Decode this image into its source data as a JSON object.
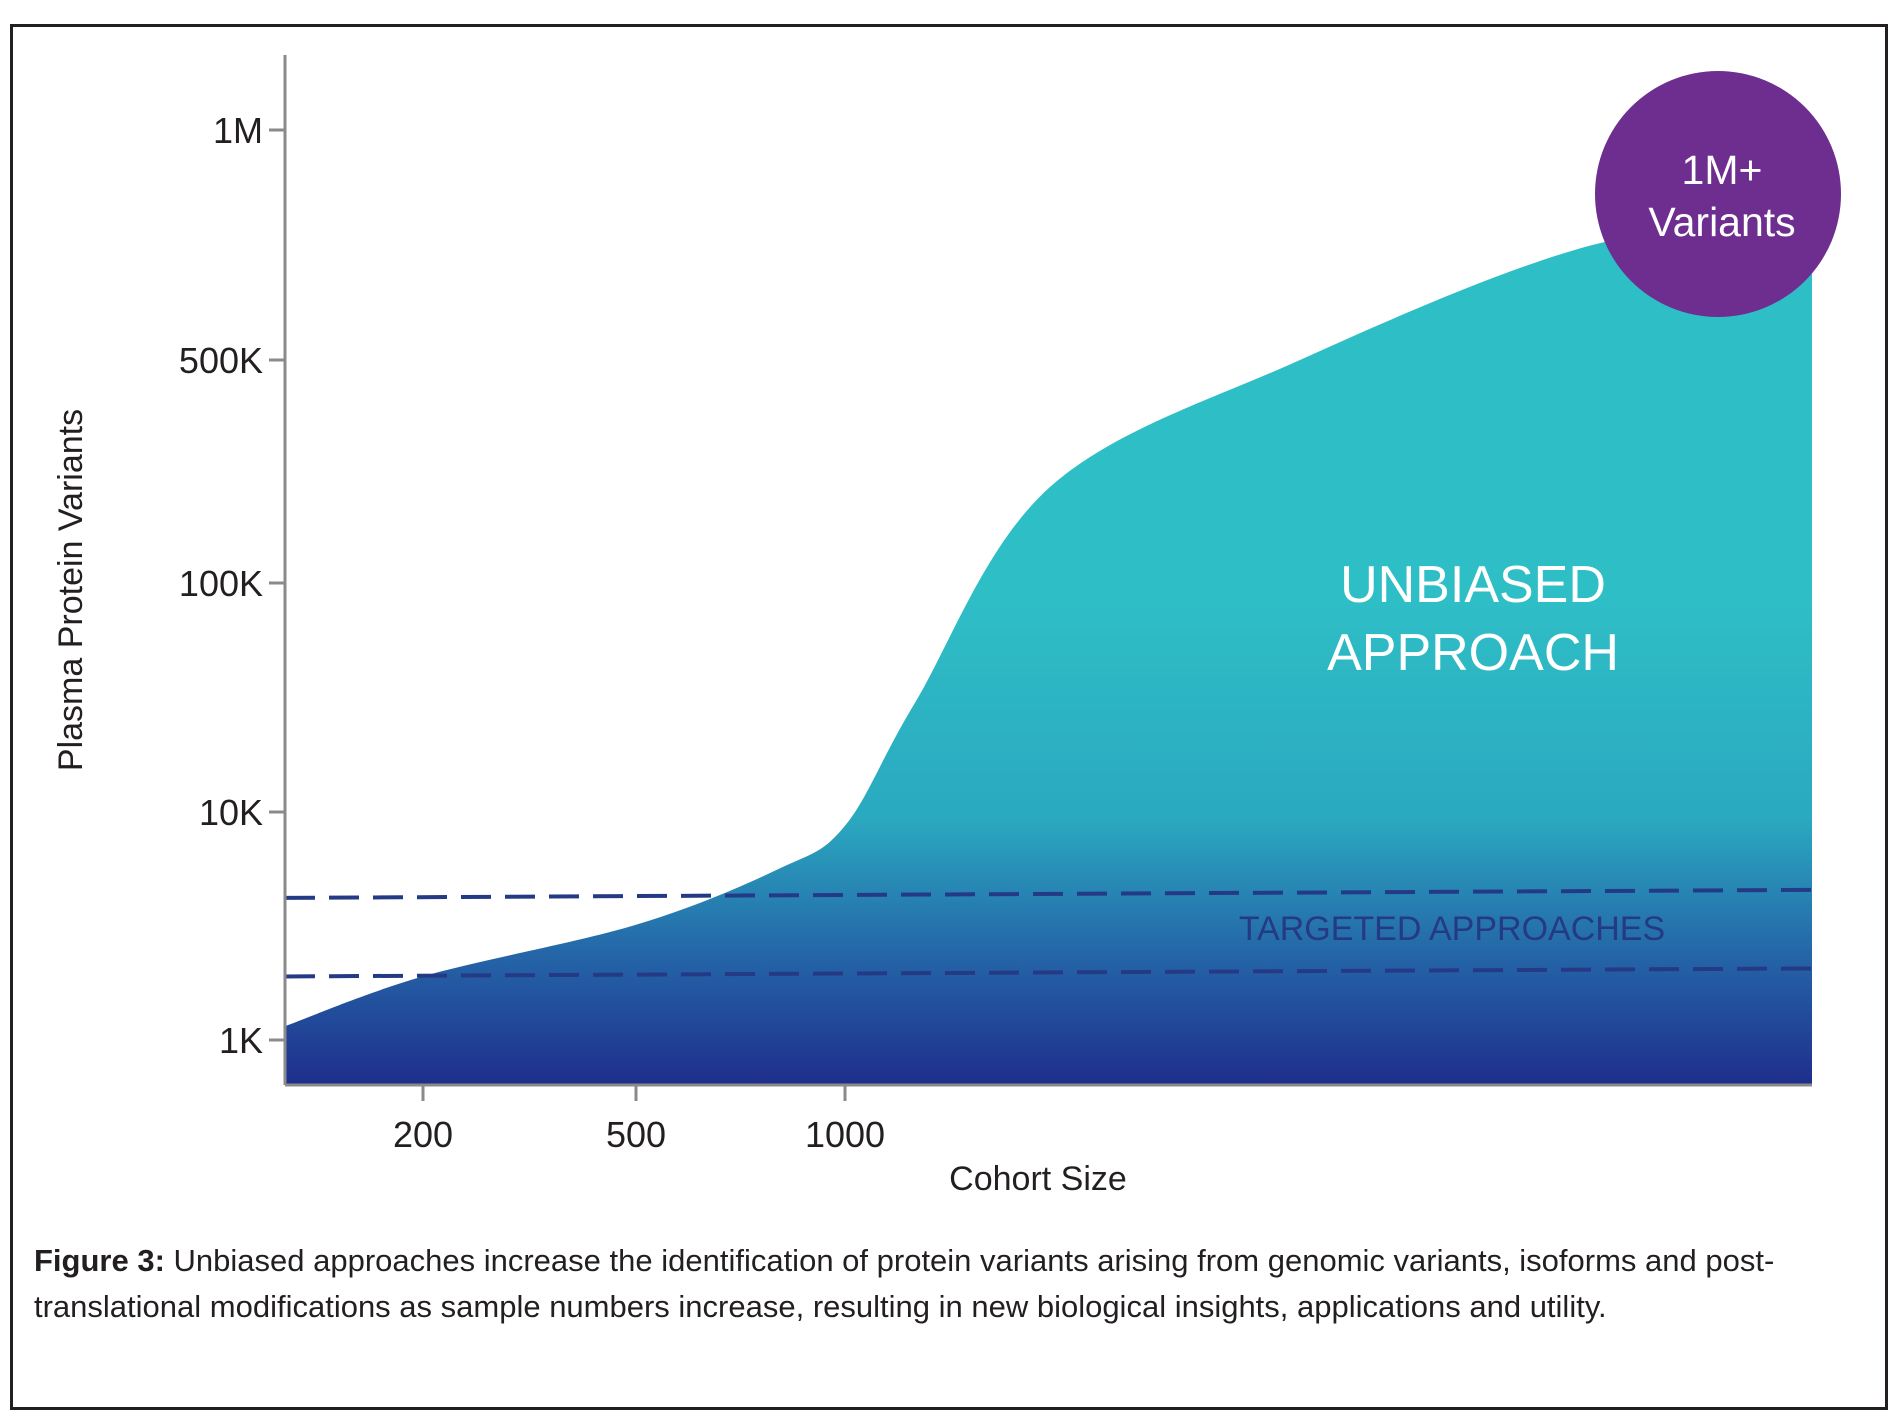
{
  "chart_data": {
    "type": "area",
    "title": "",
    "xlabel": "Cohort Size",
    "ylabel": "Plasma Protein Variants",
    "x_ticks": [
      "200",
      "500",
      "1000"
    ],
    "y_ticks": [
      "1M",
      "500K",
      "100K",
      "10K",
      "1K"
    ],
    "series": [
      {
        "name": "Unbiased approach",
        "points": [
          {
            "x": 60,
            "y": 1150
          },
          {
            "x": 200,
            "y": 1900
          },
          {
            "x": 500,
            "y": 3200
          },
          {
            "x": 800,
            "y": 5600
          },
          {
            "x": 1000,
            "y": 8700
          },
          {
            "x": 1300,
            "y": 30000
          },
          {
            "x": 3000,
            "y": 200000
          },
          {
            "x": 10000,
            "y": 500000
          },
          {
            "x": 30000,
            "y": 700000
          },
          {
            "x": 60000,
            "y": 780000
          }
        ]
      },
      {
        "name": "Targeted approaches (upper bound)",
        "constant_y": 4200
      },
      {
        "name": "Targeted approaches (lower bound)",
        "constant_y": 1900
      }
    ],
    "annotations": {
      "region_label": [
        "UNBIASED",
        "APPROACH"
      ],
      "targeted_label": "TARGETED APPROACHES",
      "badge": [
        "1M+",
        "Variants"
      ]
    },
    "colors": {
      "area_top": "#2ebec6",
      "area_bottom": "#1f2e8c",
      "dashed": "#253a85",
      "badge": "#6d2e8f",
      "axis": "#8a8a8a"
    }
  },
  "caption": {
    "label": "Figure 3:",
    "text": " Unbiased approaches increase the identification of protein variants arising from genomic variants, isoforms and post-translational modifications as sample numbers increase, resulting in new biological insights, applications and utility."
  }
}
